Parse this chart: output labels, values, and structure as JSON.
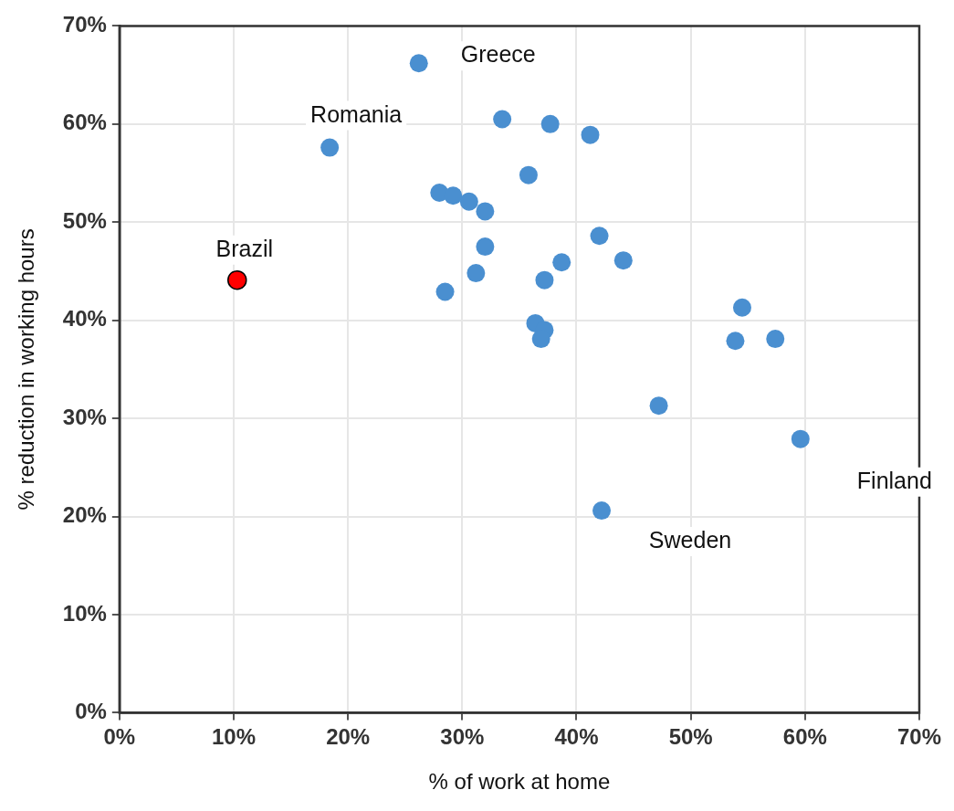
{
  "chart_data": {
    "type": "scatter",
    "xlabel": "% of work at home",
    "ylabel": "% reduction in working hours",
    "xlim": [
      0,
      70
    ],
    "ylim": [
      0,
      70
    ],
    "xticks": [
      {
        "value": 0,
        "label": "0%"
      },
      {
        "value": 10,
        "label": "10%"
      },
      {
        "value": 20,
        "label": "20%"
      },
      {
        "value": 30,
        "label": "30%"
      },
      {
        "value": 40,
        "label": "40%"
      },
      {
        "value": 50,
        "label": "50%"
      },
      {
        "value": 60,
        "label": "60%"
      },
      {
        "value": 70,
        "label": "70%"
      }
    ],
    "yticks": [
      {
        "value": 0,
        "label": "0%"
      },
      {
        "value": 10,
        "label": "10%"
      },
      {
        "value": 20,
        "label": "20%"
      },
      {
        "value": 30,
        "label": "30%"
      },
      {
        "value": 40,
        "label": "40%"
      },
      {
        "value": 50,
        "label": "50%"
      },
      {
        "value": 60,
        "label": "60%"
      },
      {
        "value": 70,
        "label": "70%"
      }
    ],
    "grid": true,
    "marker": "circle",
    "series": [
      {
        "color": "#4a8fd0",
        "x": [
          26.2,
          18.4,
          33.5,
          37.7,
          41.2,
          35.8,
          28.0,
          29.2,
          30.6,
          32.0,
          32.0,
          42.0,
          38.7,
          44.1,
          31.2,
          37.2,
          28.5,
          36.4,
          37.2,
          36.9,
          54.5,
          53.9,
          57.4,
          47.2,
          59.6,
          42.2
        ],
        "values": [
          66.2,
          57.6,
          60.5,
          60.0,
          58.9,
          54.8,
          53.0,
          52.7,
          52.1,
          51.1,
          47.5,
          48.6,
          45.9,
          46.1,
          44.8,
          44.1,
          42.9,
          39.7,
          39.0,
          38.1,
          41.3,
          37.9,
          38.1,
          31.3,
          27.9,
          20.6
        ]
      },
      {
        "color": "#ff0000",
        "x": [
          10.3
        ],
        "values": [
          44.1
        ]
      }
    ],
    "annotations": [
      {
        "text": "Greece",
        "x": 26.2,
        "y": 66.2
      },
      {
        "text": "Romania",
        "x": 18.4,
        "y": 57.6
      },
      {
        "text": "Brazil",
        "x": 10.3,
        "y": 44.1
      },
      {
        "text": "Sweden",
        "x": 42.2,
        "y": 20.6
      },
      {
        "text": "Finland",
        "x": 59.6,
        "y": 27.9
      }
    ]
  }
}
